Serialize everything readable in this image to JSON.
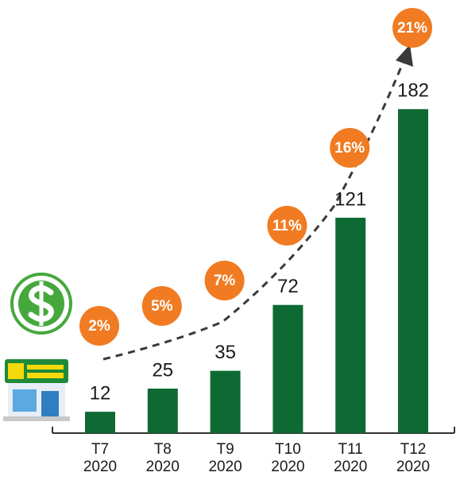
{
  "chart_data": {
    "type": "bar",
    "categories": [
      [
        "T7",
        "2020"
      ],
      [
        "T8",
        "2020"
      ],
      [
        "T9",
        "2020"
      ],
      [
        "T10",
        "2020"
      ],
      [
        "T11",
        "2020"
      ],
      [
        "T12",
        "2020"
      ]
    ],
    "values": [
      12,
      25,
      35,
      72,
      121,
      182
    ],
    "color": "#0e6a33",
    "series": [
      {
        "values": [
          2,
          5,
          7,
          11,
          16,
          21
        ],
        "value_labels": [
          "2%",
          "5%",
          "7%",
          "11%",
          "16%",
          "21%"
        ],
        "color": "#f07b22"
      }
    ]
  }
}
